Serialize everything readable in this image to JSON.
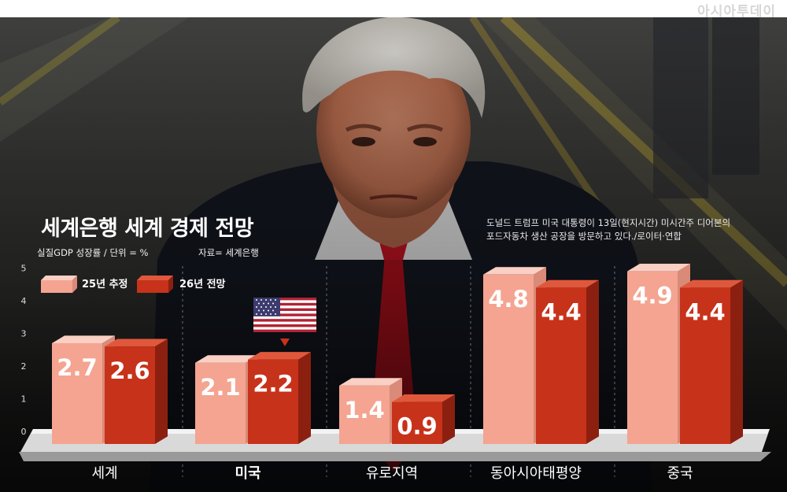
{
  "brand": "아시아투데이",
  "photo_caption": [
    "도널드 트럼프 미국 대통령이 13일(현지시간) 미시간주 디어본의",
    "포드자동차 생산 공장을 방문하고 있다./로이터·연합"
  ],
  "photo_subject": "portrait-photo",
  "colors": {
    "series_25": "#f4a491",
    "series_26": "#c7321a",
    "base": "#d9d9d9"
  },
  "chart_data": {
    "type": "bar",
    "title": "세계은행 세계 경제 전망",
    "subtitle": "실질GDP 성장률 / 단위 = %",
    "source": "자료= 세계은행",
    "categories": [
      "세계",
      "미국",
      "유로지역",
      "동아시아태평양",
      "중국"
    ],
    "highlight_category": "미국",
    "series": [
      {
        "name": "25년 추정",
        "values": [
          2.7,
          2.1,
          1.4,
          4.8,
          4.9
        ],
        "labels": [
          "2.7",
          "2.1",
          "1.4",
          "4.8",
          "4.9"
        ]
      },
      {
        "name": "26년 전망",
        "values": [
          2.6,
          2.2,
          0.9,
          4.4,
          4.4
        ],
        "labels": [
          "2.6",
          "2.2",
          "0.9",
          "4.4",
          "4.4"
        ]
      }
    ],
    "yticks": [
      "0",
      "1",
      "2",
      "3",
      "4",
      "5"
    ],
    "ylim": [
      0,
      5
    ],
    "grid": false,
    "legend": "top-left"
  }
}
